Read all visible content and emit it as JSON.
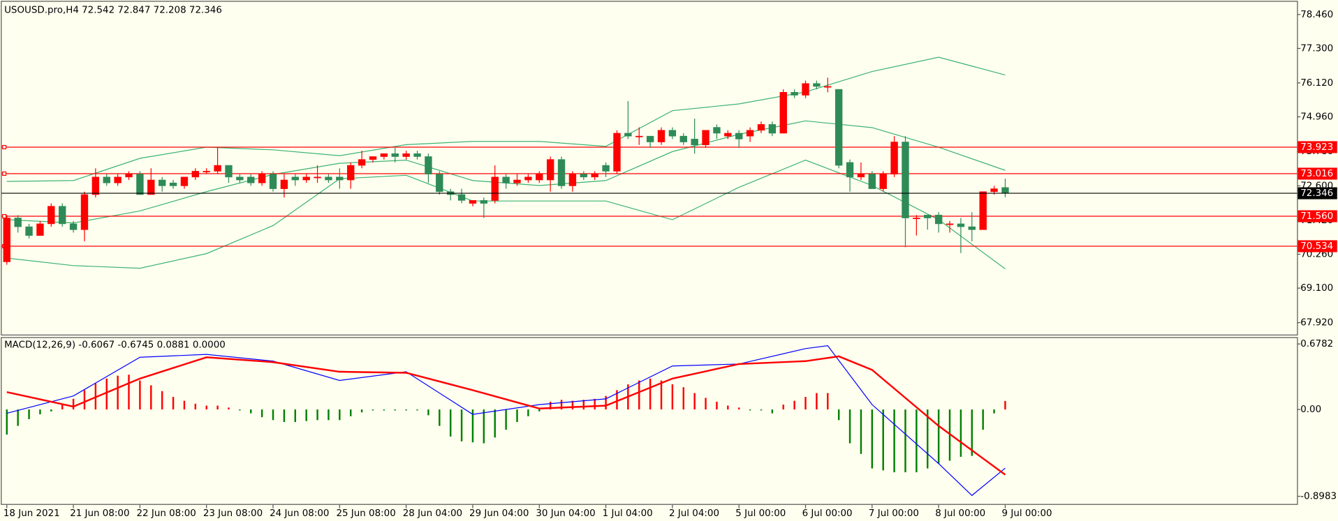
{
  "chart_data": [
    {
      "type": "candlestick",
      "title": "USOUSD.pro,H4  72.542 72.847 72.208 72.346",
      "categories": [
        "18 Jun 2021",
        null,
        null,
        null,
        null,
        null,
        "21 Jun 08:00",
        null,
        null,
        null,
        null,
        null,
        "22 Jun 08:00",
        null,
        null,
        null,
        null,
        null,
        "23 Jun 08:00",
        null,
        null,
        null,
        null,
        null,
        "24 Jun 08:00",
        null,
        null,
        null,
        null,
        null,
        "25 Jun 08:00",
        null,
        null,
        null,
        null,
        null,
        "28 Jun 04:00",
        null,
        null,
        null,
        null,
        null,
        "29 Jun 04:00",
        null,
        null,
        null,
        null,
        null,
        "30 Jun 04:00",
        null,
        null,
        null,
        null,
        null,
        "1 Jul 04:00",
        null,
        null,
        null,
        null,
        null,
        "2 Jul 04:00",
        null,
        null,
        null,
        null,
        null,
        "5 Jul 00:00",
        null,
        null,
        null,
        null,
        null,
        "6 Jul 00:00",
        null,
        null,
        null,
        null,
        null,
        "7 Jul 00:00",
        null,
        null,
        null,
        null,
        null,
        "8 Jul 00:00",
        null,
        null,
        null,
        null,
        null,
        "9 Jul 00:00"
      ],
      "open": [
        70.0,
        71.5,
        71.2,
        70.9,
        71.3,
        71.9,
        71.3,
        71.1,
        72.3,
        72.9,
        72.7,
        72.9,
        73.0,
        72.3,
        72.8,
        72.7,
        72.6,
        72.9,
        73.1,
        73.1,
        73.3,
        72.9,
        72.9,
        72.7,
        73.0,
        72.5,
        72.9,
        72.8,
        72.9,
        72.9,
        72.9,
        72.8,
        73.3,
        73.5,
        73.6,
        73.7,
        73.6,
        73.7,
        73.6,
        73.0,
        72.4,
        72.3,
        72.0,
        72.1,
        72.1,
        72.9,
        72.7,
        72.8,
        72.8,
        72.8,
        73.5,
        72.6,
        73.0,
        72.9,
        73.3,
        73.1,
        74.4,
        74.3,
        74.3,
        74.1,
        74.5,
        74.3,
        74.2,
        74.0,
        74.6,
        74.3,
        74.4,
        74.3,
        74.5,
        74.7,
        74.4,
        75.8,
        75.7,
        76.1,
        76.0,
        75.9,
        73.4,
        72.9,
        73.0,
        72.5,
        73.0,
        74.1,
        71.5,
        71.6,
        71.6,
        71.3,
        71.3,
        71.2,
        71.1,
        72.4,
        72.542
      ],
      "high": [
        71.6,
        71.6,
        71.3,
        71.4,
        72.0,
        72.0,
        71.4,
        72.4,
        73.2,
        73.0,
        73.0,
        73.1,
        73.1,
        73.2,
        72.9,
        72.8,
        72.9,
        73.2,
        73.2,
        73.9,
        73.3,
        73.0,
        73.0,
        73.1,
        73.1,
        73.0,
        73.0,
        73.0,
        73.3,
        73.0,
        73.2,
        73.4,
        73.8,
        73.6,
        73.7,
        73.9,
        73.8,
        73.8,
        73.7,
        73.1,
        72.5,
        72.5,
        72.1,
        72.2,
        73.3,
        73.0,
        73.0,
        73.0,
        73.1,
        73.6,
        73.6,
        73.1,
        73.1,
        73.1,
        73.4,
        74.5,
        75.5,
        74.6,
        74.3,
        74.6,
        74.6,
        74.4,
        74.9,
        74.5,
        74.7,
        74.5,
        74.5,
        74.6,
        74.8,
        74.8,
        75.9,
        75.9,
        76.2,
        76.2,
        76.3,
        75.9,
        73.5,
        73.4,
        73.1,
        73.1,
        74.3,
        74.3,
        71.6,
        71.6,
        71.7,
        71.4,
        71.5,
        71.7,
        72.4,
        72.6,
        72.847
      ],
      "low": [
        69.9,
        71.0,
        70.8,
        70.9,
        71.2,
        71.2,
        71.0,
        70.7,
        72.2,
        72.6,
        72.6,
        72.8,
        72.3,
        72.3,
        72.4,
        72.5,
        72.5,
        72.8,
        73.0,
        73.0,
        72.7,
        72.7,
        72.6,
        72.6,
        72.4,
        72.2,
        72.6,
        72.7,
        72.7,
        72.7,
        72.5,
        72.5,
        73.2,
        73.4,
        73.5,
        73.4,
        73.5,
        73.5,
        72.7,
        72.3,
        72.1,
        72.0,
        71.9,
        71.5,
        72.0,
        72.5,
        72.6,
        72.7,
        72.7,
        72.4,
        72.5,
        72.4,
        72.8,
        72.8,
        72.9,
        73.0,
        74.2,
        74.0,
        73.9,
        74.0,
        74.2,
        74.0,
        73.7,
        73.9,
        74.2,
        74.2,
        73.9,
        74.1,
        74.4,
        74.3,
        74.4,
        75.6,
        75.6,
        75.9,
        75.8,
        73.2,
        72.4,
        72.8,
        72.5,
        72.4,
        72.9,
        70.5,
        70.9,
        71.1,
        71.0,
        71.0,
        70.3,
        70.7,
        71.1,
        72.3,
        72.208
      ],
      "close": [
        71.5,
        71.2,
        70.9,
        71.3,
        71.9,
        71.3,
        71.1,
        72.3,
        72.9,
        72.7,
        72.9,
        73.0,
        72.3,
        72.8,
        72.6,
        72.6,
        72.9,
        73.1,
        73.1,
        73.3,
        72.9,
        72.8,
        72.7,
        73.0,
        72.5,
        72.8,
        72.8,
        72.9,
        72.9,
        72.8,
        72.8,
        73.3,
        73.5,
        73.6,
        73.7,
        73.6,
        73.7,
        73.6,
        73.0,
        72.4,
        72.3,
        72.1,
        72.1,
        72.0,
        72.9,
        72.7,
        72.8,
        72.9,
        73.0,
        73.5,
        72.6,
        73.0,
        72.9,
        73.0,
        73.1,
        74.4,
        74.3,
        74.3,
        74.1,
        74.5,
        74.3,
        74.1,
        74.0,
        74.5,
        74.4,
        74.4,
        74.2,
        74.5,
        74.7,
        74.4,
        75.8,
        75.7,
        76.1,
        76.0,
        76.0,
        73.3,
        72.9,
        73.0,
        72.5,
        73.0,
        74.1,
        71.5,
        71.5,
        71.5,
        71.3,
        71.3,
        71.2,
        71.1,
        72.4,
        72.5,
        72.346
      ],
      "up_color": "#ff0000",
      "down_color": "#2e8b57",
      "series": [
        {
          "color": "#3cb371",
          "x": [
            0,
            6,
            12,
            18,
            24,
            30,
            36,
            42,
            48,
            54,
            60,
            66,
            72,
            78,
            84,
            90
          ],
          "values": [
            72.75,
            72.78,
            73.54,
            73.92,
            73.83,
            73.63,
            74.01,
            74.12,
            74.12,
            73.95,
            75.17,
            75.4,
            75.81,
            76.51,
            77.0,
            76.39
          ]
        },
        {
          "color": "#3cb371",
          "x": [
            0,
            6,
            12,
            18,
            24,
            30,
            36,
            42,
            48,
            54,
            60,
            66,
            72,
            78,
            84,
            90
          ],
          "values": [
            71.44,
            71.33,
            71.74,
            72.4,
            72.99,
            73.37,
            73.48,
            72.78,
            72.61,
            72.78,
            73.77,
            74.36,
            74.82,
            74.59,
            73.92,
            73.13
          ]
        },
        {
          "color": "#3cb371",
          "x": [
            0,
            6,
            12,
            18,
            24,
            30,
            36,
            42,
            48,
            54,
            60,
            66,
            72,
            78,
            84,
            90
          ],
          "values": [
            70.13,
            69.87,
            69.78,
            70.28,
            71.24,
            72.84,
            72.96,
            72.08,
            72.08,
            72.08,
            71.44,
            72.55,
            73.48,
            72.61,
            71.44,
            69.76
          ]
        }
      ],
      "levels": [
        73.923,
        73.016,
        {
          "value": 71.56,
          "label": "71.560"
        },
        70.534
      ],
      "level_color": "#ff0000",
      "ylim": [
        67.57,
        78.84
      ],
      "yticks": [
        {
          "value": 78.46,
          "label": "78.460"
        },
        {
          "value": 77.3,
          "label": "77.300"
        },
        {
          "value": 76.12,
          "label": "76.120"
        },
        {
          "value": 74.96,
          "label": "74.960"
        },
        {
          "value": 73.78,
          "label": "73.780"
        },
        {
          "value": 72.6,
          "label": "72.600"
        },
        {
          "value": 71.42,
          "label": "71.420"
        },
        {
          "value": 70.26,
          "label": "70.260"
        },
        {
          "value": 69.1,
          "label": "69.100"
        },
        {
          "value": 67.92,
          "label": "67.920"
        }
      ]
    },
    {
      "type": "macd",
      "title": "MACD(12,26,9) -0.6067 -0.6745 0.0881 0.0000",
      "series": [
        {
          "up_color": "#ff0000",
          "down_color": "#008000",
          "values": [
            -0.26,
            -0.17,
            -0.1,
            -0.05,
            -0.02,
            0.05,
            0.11,
            0.2,
            0.27,
            0.32,
            0.35,
            0.36,
            0.3,
            0.25,
            0.19,
            0.13,
            0.09,
            0.06,
            0.04,
            0.04,
            0.02,
            -0.01,
            -0.04,
            -0.08,
            -0.11,
            -0.13,
            -0.13,
            -0.12,
            -0.11,
            -0.11,
            -0.11,
            -0.07,
            -0.03,
            -0.01,
            -0.01,
            -0.01,
            -0.01,
            -0.01,
            -0.06,
            -0.17,
            -0.28,
            -0.33,
            -0.34,
            -0.35,
            -0.29,
            -0.21,
            -0.13,
            -0.07,
            -0.02,
            0.08,
            0.1,
            0.09,
            0.1,
            0.11,
            0.14,
            0.2,
            0.26,
            0.3,
            0.32,
            0.3,
            0.26,
            0.23,
            0.17,
            0.12,
            0.08,
            0.04,
            0.02,
            -0.01,
            -0.01,
            -0.04,
            0.05,
            0.09,
            0.13,
            0.17,
            0.17,
            -0.11,
            -0.35,
            -0.46,
            -0.61,
            -0.63,
            -0.65,
            -0.65,
            -0.65,
            -0.61,
            -0.56,
            -0.53,
            -0.49,
            -0.48,
            -0.21,
            -0.04,
            0.0881
          ]
        },
        {
          "color": "#0000ff",
          "x": [
            0,
            6,
            12,
            18,
            24,
            30,
            36,
            42,
            48,
            54,
            60,
            66,
            72,
            74,
            78,
            84,
            87,
            90
          ],
          "values": [
            -0.04,
            0.14,
            0.54,
            0.57,
            0.5,
            0.3,
            0.39,
            -0.05,
            0.05,
            0.11,
            0.45,
            0.47,
            0.63,
            0.66,
            0.05,
            -0.56,
            -0.89,
            -0.6067
          ]
        },
        {
          "color": "#ff0000",
          "x": [
            0,
            6,
            12,
            18,
            24,
            30,
            36,
            42,
            48,
            54,
            60,
            66,
            72,
            75,
            78,
            84,
            90
          ],
          "values": [
            0.18,
            0.03,
            0.32,
            0.54,
            0.49,
            0.39,
            0.38,
            0.2,
            0.01,
            0.04,
            0.32,
            0.47,
            0.5,
            0.55,
            0.41,
            -0.17,
            -0.6745
          ]
        }
      ],
      "ylim": [
        -0.978,
        0.74
      ],
      "yticks": [
        0.6782,
        {
          "value": 0,
          "label": "0.00"
        },
        -0.8983
      ]
    }
  ]
}
